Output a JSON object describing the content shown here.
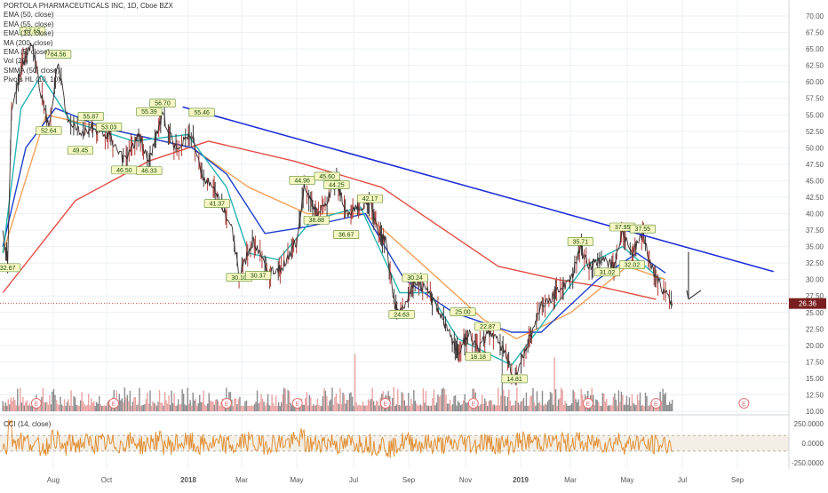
{
  "chart_data": {
    "type": "line",
    "title": "PORTOLA PHARMACEUTICALS INC, 1D, Cboe BZX",
    "indicators": [
      "EMA (50, close)",
      "EMA (55, close)",
      "EMA (13, close)",
      "MA (200, close)",
      "EMA (5, close)",
      "Vol (20)",
      "SMMA (50, close)",
      "Pivots HL (10, 10)"
    ],
    "price_axis": {
      "range": [
        10,
        70
      ],
      "ticks": [
        "70.00",
        "67.50",
        "65.00",
        "62.50",
        "60.00",
        "57.50",
        "55.00",
        "52.50",
        "50.00",
        "47.50",
        "45.00",
        "42.50",
        "40.00",
        "37.50",
        "35.00",
        "32.50",
        "30.00",
        "27.50",
        "25.00",
        "22.50",
        "20.00",
        "17.50",
        "15.00",
        "12.50",
        "10.00"
      ]
    },
    "last_price": {
      "value": 26.36,
      "label": "26.36"
    },
    "time_axis": [
      "Aug",
      "Oct",
      "2018",
      "Mar",
      "May",
      "Jul",
      "Sep",
      "Nov",
      "2019",
      "Mar",
      "May",
      "Jul",
      "Sep"
    ],
    "price_path": [
      [
        "2017-07-01",
        37
      ],
      [
        "2017-07-06",
        33
      ],
      [
        "2017-07-10",
        55
      ],
      [
        "2017-07-20",
        62
      ],
      [
        "2017-08-01",
        66
      ],
      [
        "2017-08-10",
        58
      ],
      [
        "2017-08-18",
        53
      ],
      [
        "2017-08-28",
        63
      ],
      [
        "2017-09-05",
        55
      ],
      [
        "2017-09-20",
        52
      ],
      [
        "2017-10-01",
        53
      ],
      [
        "2017-10-20",
        52
      ],
      [
        "2017-11-05",
        48
      ],
      [
        "2017-11-20",
        52
      ],
      [
        "2017-12-01",
        48
      ],
      [
        "2017-12-15",
        55
      ],
      [
        "2017-12-28",
        50
      ],
      [
        "2018-01-15",
        52
      ],
      [
        "2018-01-25",
        46
      ],
      [
        "2018-02-10",
        43
      ],
      [
        "2018-02-25",
        38
      ],
      [
        "2018-03-05",
        30.5
      ],
      [
        "2018-03-20",
        36
      ],
      [
        "2018-04-05",
        31
      ],
      [
        "2018-04-20",
        32
      ],
      [
        "2018-05-05",
        36
      ],
      [
        "2018-05-12",
        44
      ],
      [
        "2018-05-25",
        40
      ],
      [
        "2018-06-05",
        42
      ],
      [
        "2018-06-15",
        45
      ],
      [
        "2018-06-25",
        40
      ],
      [
        "2018-07-10",
        41
      ],
      [
        "2018-07-20",
        41.5
      ],
      [
        "2018-07-30",
        37
      ],
      [
        "2018-08-05",
        36
      ],
      [
        "2018-08-15",
        26
      ],
      [
        "2018-08-22",
        25
      ],
      [
        "2018-09-05",
        30
      ],
      [
        "2018-09-20",
        28
      ],
      [
        "2018-10-01",
        25
      ],
      [
        "2018-10-10",
        22
      ],
      [
        "2018-10-20",
        19
      ],
      [
        "2018-11-01",
        22
      ],
      [
        "2018-11-10",
        19
      ],
      [
        "2018-11-20",
        22
      ],
      [
        "2018-11-30",
        21
      ],
      [
        "2018-12-10",
        18
      ],
      [
        "2018-12-18",
        15
      ],
      [
        "2019-01-05",
        22
      ],
      [
        "2019-01-15",
        26
      ],
      [
        "2019-02-01",
        28
      ],
      [
        "2019-02-15",
        30
      ],
      [
        "2019-02-25",
        35
      ],
      [
        "2019-03-05",
        32
      ],
      [
        "2019-03-20",
        33
      ],
      [
        "2019-04-01",
        32
      ],
      [
        "2019-04-10",
        37
      ],
      [
        "2019-04-20",
        34
      ],
      [
        "2019-05-01",
        37
      ],
      [
        "2019-05-10",
        32
      ],
      [
        "2019-05-20",
        29
      ],
      [
        "2019-06-01",
        26.36
      ]
    ],
    "pivot_labels": [
      {
        "x": "2017-07-06",
        "y": 32.67,
        "label": "32.67",
        "pos": "below"
      },
      {
        "x": "2017-08-01",
        "y": 66.85,
        "label": "67.65",
        "pos": "above"
      },
      {
        "x": "2017-08-28",
        "y": 63.3,
        "label": "64.56",
        "pos": "above"
      },
      {
        "x": "2017-08-18",
        "y": 53.5,
        "label": "52.64",
        "pos": "below"
      },
      {
        "x": "2017-09-20",
        "y": 50.5,
        "label": "49.45",
        "pos": "below"
      },
      {
        "x": "2017-10-01",
        "y": 53.9,
        "label": "55.87",
        "pos": "above"
      },
      {
        "x": "2017-10-20",
        "y": 52.3,
        "label": "53.03",
        "pos": "above"
      },
      {
        "x": "2017-11-05",
        "y": 47.5,
        "label": "46.50",
        "pos": "below"
      },
      {
        "x": "2017-12-01",
        "y": 54.6,
        "label": "55.39",
        "pos": "above"
      },
      {
        "x": "2017-12-15",
        "y": 55.9,
        "label": "56.70",
        "pos": "above"
      },
      {
        "x": "2017-12-01",
        "y": 47.4,
        "label": "46.33",
        "pos": "below"
      },
      {
        "x": "2018-01-25",
        "y": 54.5,
        "label": "55.46",
        "pos": "above"
      },
      {
        "x": "2018-02-10",
        "y": 42.4,
        "label": "41.37",
        "pos": "below"
      },
      {
        "x": "2018-03-05",
        "y": 31.2,
        "label": "30.10",
        "pos": "below"
      },
      {
        "x": "2018-03-25",
        "y": 31.5,
        "label": "30.37",
        "pos": "below"
      },
      {
        "x": "2018-05-10",
        "y": 44.2,
        "label": "44.96",
        "pos": "above"
      },
      {
        "x": "2018-06-05",
        "y": 44.8,
        "label": "45.60",
        "pos": "above"
      },
      {
        "x": "2018-06-15",
        "y": 43.5,
        "label": "44.25",
        "pos": "above"
      },
      {
        "x": "2018-05-25",
        "y": 39.9,
        "label": "38.88",
        "pos": "below"
      },
      {
        "x": "2018-06-25",
        "y": 37.7,
        "label": "36.67",
        "pos": "below"
      },
      {
        "x": "2018-07-20",
        "y": 41.4,
        "label": "42.17",
        "pos": "above"
      },
      {
        "x": "2018-08-22",
        "y": 25.6,
        "label": "24.63",
        "pos": "below"
      },
      {
        "x": "2018-09-05",
        "y": 29.4,
        "label": "30.24",
        "pos": "above"
      },
      {
        "x": "2018-10-25",
        "y": 24.2,
        "label": "25.00",
        "pos": "above"
      },
      {
        "x": "2018-11-20",
        "y": 22,
        "label": "22.87",
        "pos": "above"
      },
      {
        "x": "2018-11-10",
        "y": 19.2,
        "label": "18.18",
        "pos": "below"
      },
      {
        "x": "2018-12-18",
        "y": 15.8,
        "label": "14.81",
        "pos": "below"
      },
      {
        "x": "2019-02-25",
        "y": 34.9,
        "label": "35.71",
        "pos": "above"
      },
      {
        "x": "2019-04-10",
        "y": 37.1,
        "label": "37.95",
        "pos": "above"
      },
      {
        "x": "2019-05-01",
        "y": 36.8,
        "label": "37.55",
        "pos": "above"
      },
      {
        "x": "2019-03-25",
        "y": 32,
        "label": "31.02",
        "pos": "below"
      },
      {
        "x": "2019-04-20",
        "y": 33.1,
        "label": "32.02",
        "pos": "below"
      }
    ],
    "moving_averages": [
      {
        "indicator": "MA (200, close)",
        "color": "#e24d42",
        "points": [
          [
            "2017-07-01",
            28
          ],
          [
            "2017-09-15",
            42
          ],
          [
            "2017-12-01",
            48
          ],
          [
            "2018-02-01",
            51
          ],
          [
            "2018-05-01",
            48
          ],
          [
            "2018-08-01",
            44
          ],
          [
            "2018-10-01",
            38
          ],
          [
            "2018-12-01",
            32
          ],
          [
            "2019-02-01",
            30
          ],
          [
            "2019-03-15",
            29
          ],
          [
            "2019-05-15",
            27
          ]
        ]
      },
      {
        "indicator": "EMA (50, close)",
        "color": "#f4a259",
        "points": [
          [
            "2017-07-01",
            34
          ],
          [
            "2017-08-15",
            55
          ],
          [
            "2017-10-15",
            53
          ],
          [
            "2018-01-15",
            50
          ],
          [
            "2018-03-15",
            44
          ],
          [
            "2018-05-15",
            40
          ],
          [
            "2018-07-15",
            40
          ],
          [
            "2018-09-15",
            32
          ],
          [
            "2018-11-15",
            24
          ],
          [
            "2018-12-20",
            21
          ],
          [
            "2019-02-15",
            25
          ],
          [
            "2019-04-15",
            32
          ],
          [
            "2019-05-25",
            30
          ]
        ]
      },
      {
        "indicator": "SMMA (50, close)",
        "color": "#1e3fcc",
        "points": [
          [
            "2017-07-01",
            35
          ],
          [
            "2017-07-25",
            50
          ],
          [
            "2017-08-25",
            56
          ],
          [
            "2017-10-15",
            53
          ],
          [
            "2018-01-15",
            50
          ],
          [
            "2018-02-20",
            46
          ],
          [
            "2018-04-01",
            37
          ],
          [
            "2018-05-15",
            38
          ],
          [
            "2018-07-15",
            40
          ],
          [
            "2018-08-25",
            30
          ],
          [
            "2018-10-15",
            25
          ],
          [
            "2018-12-15",
            22
          ],
          [
            "2019-01-15",
            22
          ],
          [
            "2019-03-15",
            30
          ],
          [
            "2019-04-25",
            34
          ],
          [
            "2019-05-25",
            31
          ]
        ]
      },
      {
        "indicator": "EMA (13, close)",
        "color": "#26b3b3",
        "points": [
          [
            "2017-07-01",
            34
          ],
          [
            "2017-07-20",
            56
          ],
          [
            "2017-08-10",
            61
          ],
          [
            "2017-09-10",
            54
          ],
          [
            "2017-11-15",
            51
          ],
          [
            "2018-01-10",
            52
          ],
          [
            "2018-02-20",
            44
          ],
          [
            "2018-03-15",
            34
          ],
          [
            "2018-04-15",
            33
          ],
          [
            "2018-05-20",
            39
          ],
          [
            "2018-07-10",
            41
          ],
          [
            "2018-08-20",
            28
          ],
          [
            "2018-09-20",
            28
          ],
          [
            "2018-10-20",
            21
          ],
          [
            "2018-12-15",
            17
          ],
          [
            "2019-01-15",
            23
          ],
          [
            "2019-03-01",
            32
          ],
          [
            "2019-04-10",
            35
          ],
          [
            "2019-05-20",
            30
          ]
        ]
      }
    ],
    "trendline": {
      "from": [
        "2018-01-05",
        56.2
      ],
      "to": [
        "2019-09-15",
        31.2
      ],
      "color": "#1f2fd6"
    },
    "annotation_arrow": {
      "x": "2019-06-18",
      "from_y": 34.2,
      "to_y": 27
    },
    "volume": {
      "scale_max": 25,
      "baseline_price": 10,
      "events": [
        "2017-08-05",
        "2017-10-25",
        "2018-02-20",
        "2018-05-05",
        "2018-08-05",
        "2018-11-05",
        "2019-03-05",
        "2019-05-15",
        "2019-08-15"
      ],
      "event_label": "E"
    },
    "cci": {
      "legend": "CCI (14, close)",
      "ticks": [
        "250.0000",
        "0.0000",
        "-250.0000"
      ],
      "ylim": [
        -330,
        330
      ],
      "band": [
        -100,
        100
      ]
    }
  }
}
